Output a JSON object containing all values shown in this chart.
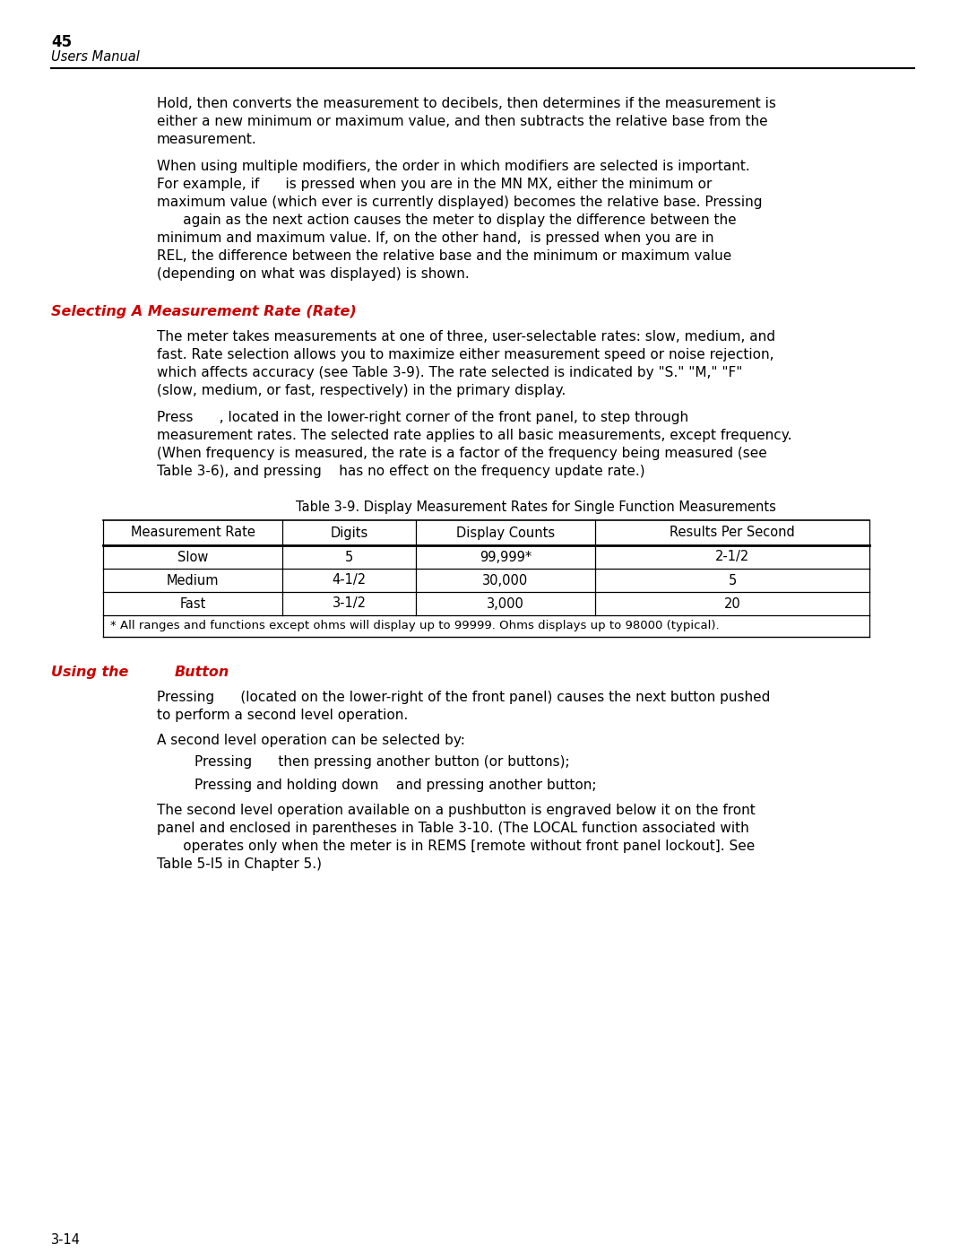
{
  "page_number": "45",
  "page_subtitle": "Users Manual",
  "background_color": "#ffffff",
  "text_color": "#000000",
  "red_color": "#cc0000",
  "header_line_color": "#000000",
  "para1_lines": [
    "Hold, then converts the measurement to decibels, then determines if the measurement is",
    "either a new minimum or maximum value, and then subtracts the relative base from the",
    "measurement."
  ],
  "para2_lines": [
    "When using multiple modifiers, the order in which modifiers are selected is important.",
    "For example, if      is pressed when you are in the MN MX, either the minimum or",
    "maximum value (which ever is currently displayed) becomes the relative base. Pressing",
    "      again as the next action causes the meter to display the difference between the",
    "minimum and maximum value. If, on the other hand,  is pressed when you are in",
    "REL, the difference between the relative base and the minimum or maximum value",
    "(depending on what was displayed) is shown."
  ],
  "section1_title": "Selecting A Measurement Rate (Rate)",
  "section1_para1_lines": [
    "The meter takes measurements at one of three, user-selectable rates: slow, medium, and",
    "fast. Rate selection allows you to maximize either measurement speed or noise rejection,",
    "which affects accuracy (see Table 3-9). The rate selected is indicated by \"S.\" \"M,\" \"F\"",
    "(slow, medium, or fast, respectively) in the primary display."
  ],
  "section1_para2_lines": [
    "Press      , located in the lower-right corner of the front panel, to step through",
    "measurement rates. The selected rate applies to all basic measurements, except frequency.",
    "(When frequency is measured, the rate is a factor of the frequency being measured (see",
    "Table 3-6), and pressing    has no effect on the frequency update rate.)"
  ],
  "table_caption": "Table 3-9. Display Measurement Rates for Single Function Measurements",
  "table_headers": [
    "Measurement Rate",
    "Digits",
    "Display Counts",
    "Results Per Second"
  ],
  "table_rows": [
    [
      "Slow",
      "5",
      "99,999*",
      "2-1/2"
    ],
    [
      "Medium",
      "4-1/2",
      "30,000",
      "5"
    ],
    [
      "Fast",
      "3-1/2",
      "3,000",
      "20"
    ]
  ],
  "table_footnote": "* All ranges and functions except ohms will display up to 99999. Ohms displays up to 98000 (typical).",
  "section2_title_part1": "Using the",
  "section2_title_part2": "Button",
  "section2_para1_lines": [
    "Pressing      (located on the lower-right of the front panel) causes the next button pushed",
    "to perform a second level operation."
  ],
  "section2_para2": "A second level operation can be selected by:",
  "section2_bullet1": "Pressing      then pressing another button (or buttons);",
  "section2_bullet2": "Pressing and holding down    and pressing another button;",
  "section2_para3_lines": [
    "The second level operation available on a pushbutton is engraved below it on the front",
    "panel and enclosed in parentheses in Table 3-10. (The LOCAL function associated with",
    "      operates only when the meter is in REMS [remote without front panel lockout]. See",
    "Table 5-I5 in Chapter 5.)"
  ],
  "footer_text": "3-14"
}
